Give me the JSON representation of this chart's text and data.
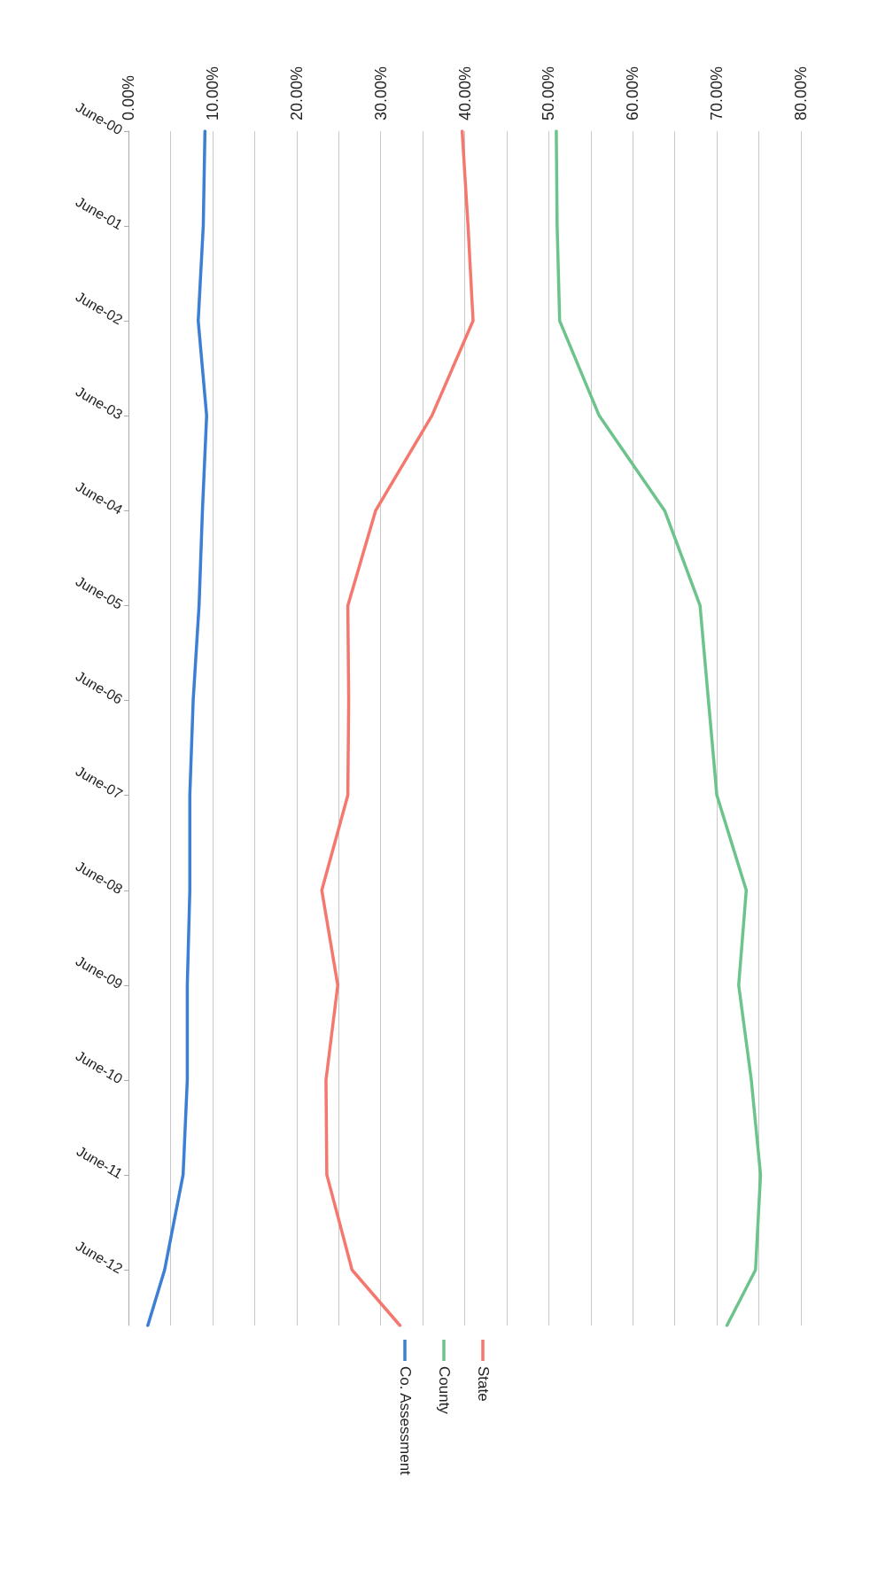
{
  "chart_data": {
    "type": "line",
    "orientation": "horizontal",
    "x": [
      "2000-06",
      "2001-06",
      "2002-06",
      "2003-06",
      "2004-06",
      "2005-06",
      "2006-06",
      "2007-06",
      "2008-06",
      "2009-06",
      "2010-06",
      "2011-06",
      "2012-06",
      "2013-01"
    ],
    "series": [
      {
        "name": "State",
        "color": "#f4786e",
        "values": [
          39.7,
          40.4,
          41.0,
          36.1,
          29.4,
          26.1,
          26.2,
          26.1,
          23.0,
          24.9,
          23.5,
          23.6,
          26.6,
          32.3
        ]
      },
      {
        "name": "County",
        "color": "#6cc38b",
        "values": [
          50.9,
          51.0,
          51.3,
          56.0,
          63.8,
          68.0,
          69.0,
          70.0,
          73.5,
          72.6,
          74.1,
          75.2,
          74.6,
          71.2
        ]
      },
      {
        "name": "Co. Assessment",
        "color": "#3c7fd4",
        "values": [
          9.1,
          8.9,
          8.3,
          9.3,
          8.8,
          8.4,
          7.7,
          7.3,
          7.3,
          7.0,
          7.0,
          6.5,
          4.3,
          2.3
        ]
      }
    ],
    "ylim": [
      "2013-01",
      "2000-06"
    ],
    "yticks": [
      {
        "value": "2000-06",
        "label": "June-00"
      },
      {
        "value": "2001-06",
        "label": "June-01"
      },
      {
        "value": "2002-06",
        "label": "June-02"
      },
      {
        "value": "2003-06",
        "label": "June-03"
      },
      {
        "value": "2004-06",
        "label": "June-04"
      },
      {
        "value": "2005-06",
        "label": "June-05"
      },
      {
        "value": "2006-06",
        "label": "June-06"
      },
      {
        "value": "2007-06",
        "label": "June-07"
      },
      {
        "value": "2008-06",
        "label": "June-08"
      },
      {
        "value": "2009-06",
        "label": "June-09"
      },
      {
        "value": "2010-06",
        "label": "June-10"
      },
      {
        "value": "2011-06",
        "label": "June-11"
      },
      {
        "value": "2012-06",
        "label": "June-12"
      }
    ],
    "xlim": [
      0,
      80
    ],
    "xticks": [
      {
        "value": 0,
        "label": "0.00%"
      },
      {
        "value": 5,
        "label": null
      },
      {
        "value": 10,
        "label": "10.00%"
      },
      {
        "value": 15,
        "label": null
      },
      {
        "value": 20,
        "label": "20.00%"
      },
      {
        "value": 25,
        "label": null
      },
      {
        "value": 30,
        "label": "30.00%"
      },
      {
        "value": 35,
        "label": null
      },
      {
        "value": 40,
        "label": "40.00%"
      },
      {
        "value": 45,
        "label": null
      },
      {
        "value": 50,
        "label": "50.00%"
      },
      {
        "value": 55,
        "label": null
      },
      {
        "value": 60,
        "label": "60.00%"
      },
      {
        "value": 65,
        "label": null
      },
      {
        "value": 70,
        "label": "70.00%"
      },
      {
        "value": 75,
        "label": null
      },
      {
        "value": 80,
        "label": "80.00%"
      }
    ],
    "grid": "x",
    "legend": "bottom",
    "marker": "none",
    "line_style": "solid"
  }
}
